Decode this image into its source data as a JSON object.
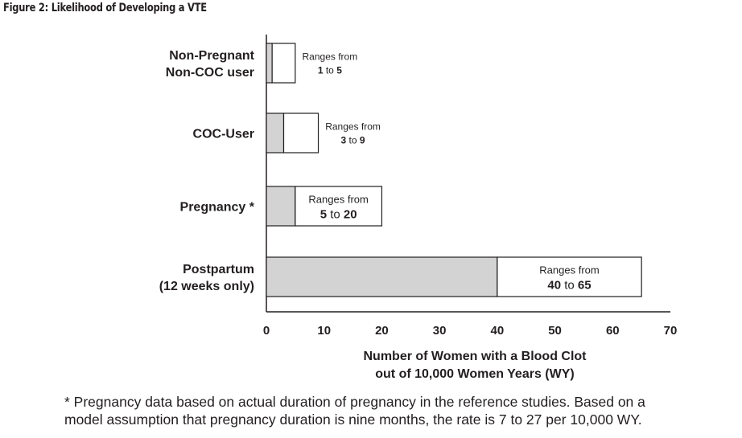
{
  "title": "Figure 2: Likelihood of Developing a VTE",
  "chart_data": {
    "type": "bar",
    "orientation": "horizontal",
    "title": "Figure 2: Likelihood of Developing a VTE",
    "categories": [
      {
        "lines": [
          "Non-Pregnant",
          "Non-COC user"
        ]
      },
      {
        "lines": [
          "COC-User"
        ]
      },
      {
        "lines": [
          "Pregnancy *"
        ]
      },
      {
        "lines": [
          "Postpartum",
          "(12 weeks only)"
        ]
      }
    ],
    "series": [
      {
        "name": "low",
        "values": [
          1,
          3,
          5,
          40
        ]
      },
      {
        "name": "high",
        "values": [
          5,
          9,
          20,
          65
        ]
      }
    ],
    "range_labels": [
      {
        "prefix": "Ranges from",
        "low": "1",
        "to": "to",
        "high": "5"
      },
      {
        "prefix": "Ranges from",
        "low": "3",
        "to": "to",
        "high": "9"
      },
      {
        "prefix": "Ranges from",
        "low": "5",
        "to": "to",
        "high": "20"
      },
      {
        "prefix": "Ranges from",
        "low": "40",
        "to": "to",
        "high": "65"
      }
    ],
    "xticks": [
      0,
      10,
      20,
      30,
      40,
      50,
      60,
      70
    ],
    "xlim": [
      0,
      70
    ],
    "xlabel": [
      "Number of Women with a Blood Clot",
      "out of 10,000 Women Years (WY)"
    ],
    "colors": {
      "low_fill": "#d3d3d3",
      "high_fill": "#ffffff",
      "stroke": "#231f20"
    }
  },
  "footnote": [
    "* Pregnancy data based on actual duration of pregnancy in the reference studies. Based on a",
    "model assumption that pregnancy duration is nine months, the rate is 7 to 27 per 10,000 WY."
  ]
}
